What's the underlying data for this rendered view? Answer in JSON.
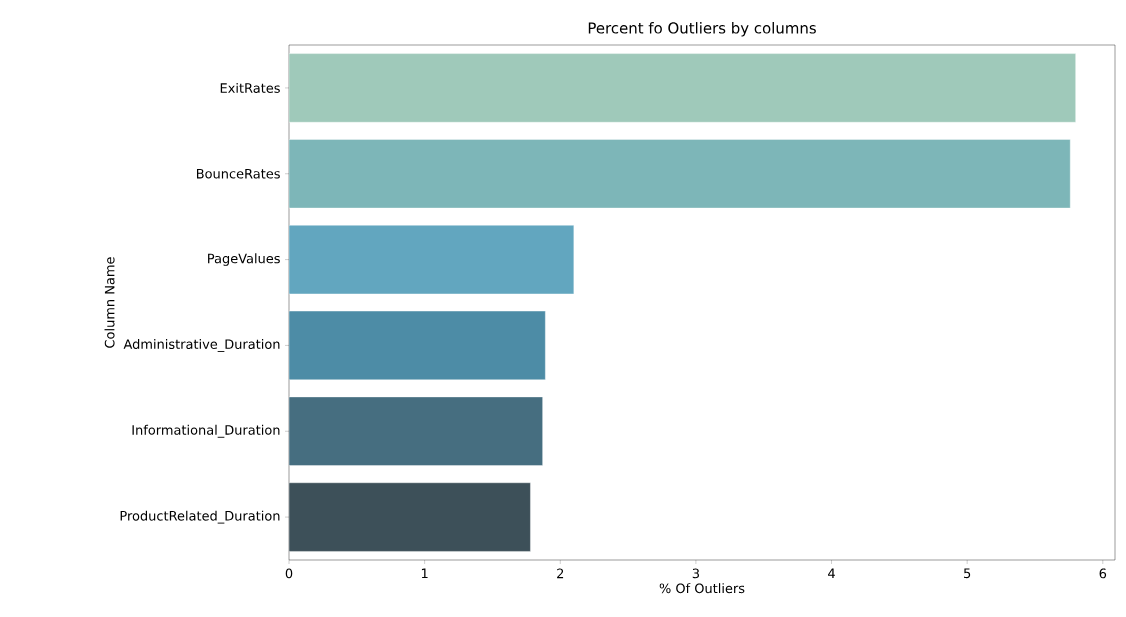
{
  "chart_data": {
    "type": "bar",
    "orientation": "horizontal",
    "title": "Percent fo Outliers by columns",
    "xlabel": "% Of Outliers",
    "ylabel": "Column Name",
    "categories": [
      "ExitRates",
      "BounceRates",
      "PageValues",
      "Administrative_Duration",
      "Informational_Duration",
      "ProductRelated_Duration"
    ],
    "values": [
      5.8,
      5.76,
      2.1,
      1.89,
      1.87,
      1.78
    ],
    "colors": [
      "#9fc9ba",
      "#7db6b8",
      "#62a6bf",
      "#4d8ca6",
      "#466e80",
      "#3d5059"
    ],
    "xlim": [
      0,
      6.09
    ],
    "xticks": [
      0,
      1,
      2,
      3,
      4,
      5,
      6
    ]
  }
}
